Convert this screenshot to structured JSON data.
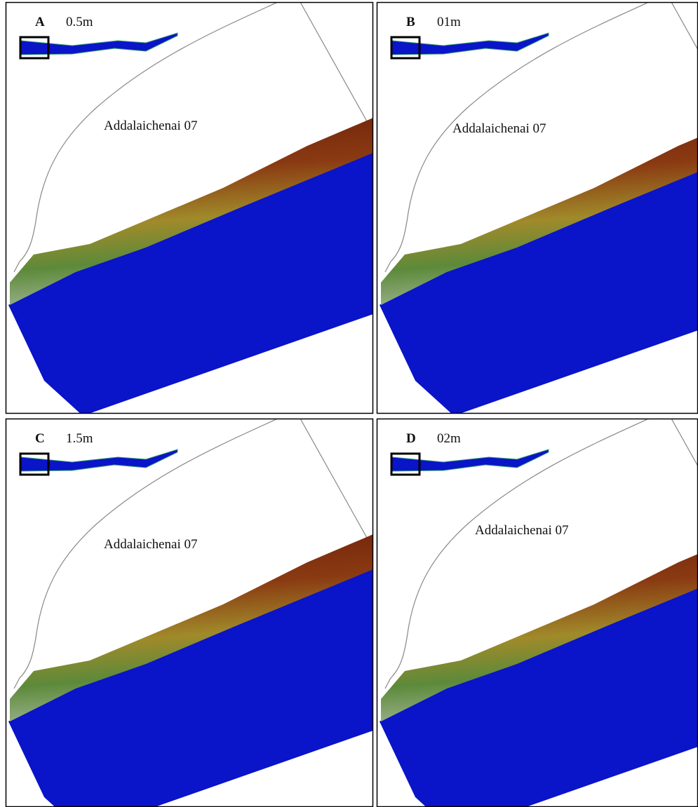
{
  "panels": [
    {
      "letter": "A",
      "label": "0.5m",
      "place": "Addalaichenai 07"
    },
    {
      "letter": "B",
      "label": "01m",
      "place": "Addalaichenai 07"
    },
    {
      "letter": "C",
      "label": "1.5m",
      "place": "Addalaichenai 07"
    },
    {
      "letter": "D",
      "label": "02m",
      "place": "Addalaichenai 07"
    }
  ]
}
